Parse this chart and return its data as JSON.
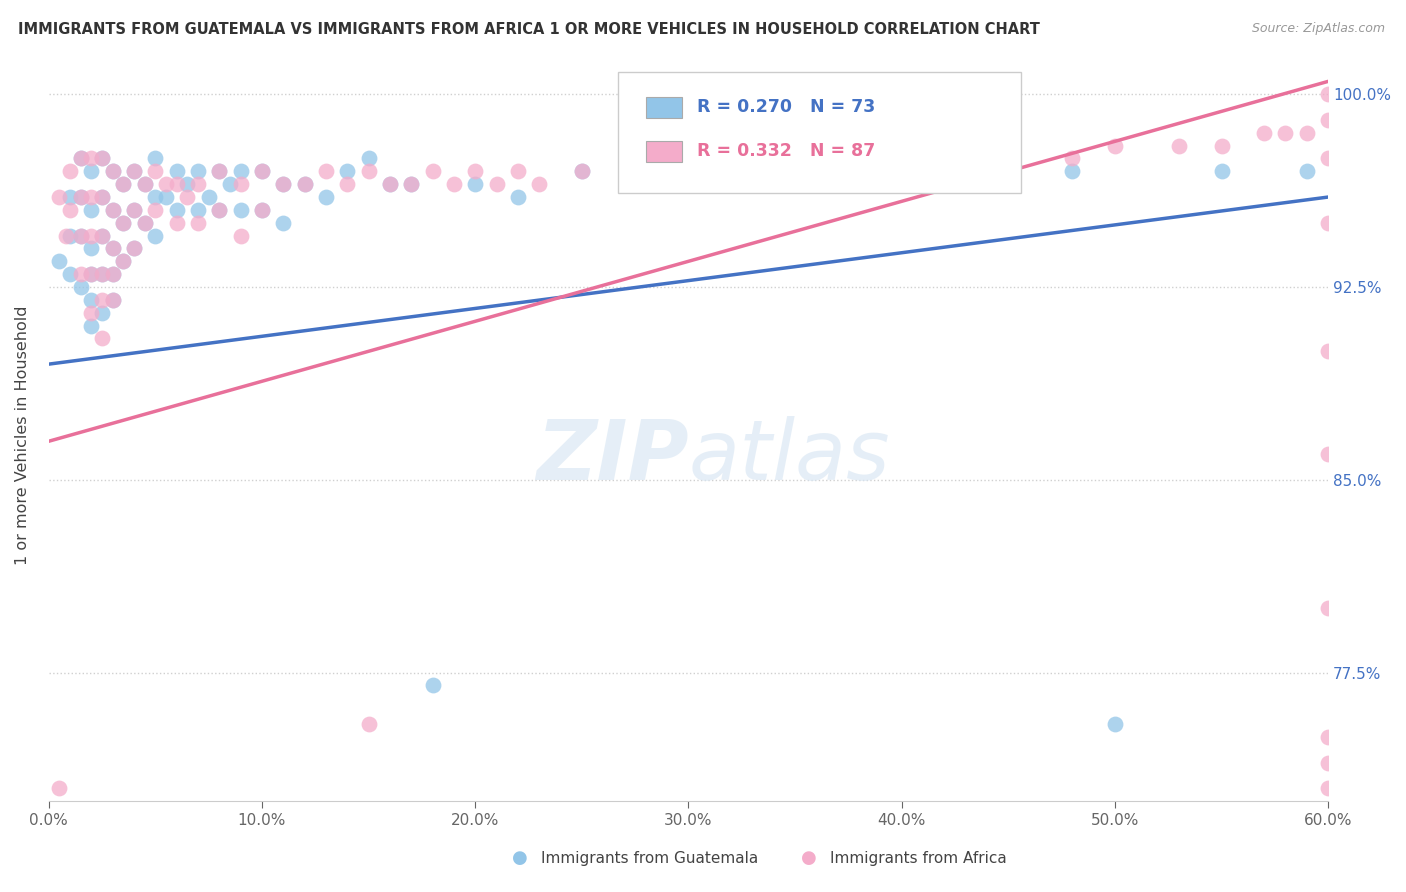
{
  "title": "IMMIGRANTS FROM GUATEMALA VS IMMIGRANTS FROM AFRICA 1 OR MORE VEHICLES IN HOUSEHOLD CORRELATION CHART",
  "source": "Source: ZipAtlas.com",
  "ylabel": "1 or more Vehicles in Household",
  "xlim": [
    0.0,
    0.6
  ],
  "ylim": [
    0.725,
    1.01
  ],
  "xtick_labels": [
    "0.0%",
    "10.0%",
    "20.0%",
    "30.0%",
    "40.0%",
    "50.0%",
    "60.0%"
  ],
  "xtick_vals": [
    0.0,
    0.1,
    0.2,
    0.3,
    0.4,
    0.5,
    0.6
  ],
  "ytick_labels": [
    "77.5%",
    "85.0%",
    "92.5%",
    "100.0%"
  ],
  "ytick_vals": [
    0.775,
    0.85,
    0.925,
    1.0
  ],
  "legend_r_blue": "R = 0.270",
  "legend_n_blue": "N = 73",
  "legend_r_pink": "R = 0.332",
  "legend_n_pink": "N = 87",
  "blue_color": "#92C5E8",
  "pink_color": "#F4ACCA",
  "blue_line_color": "#4472C4",
  "pink_line_color": "#E8709A",
  "blue_trend_x0": 0.0,
  "blue_trend_y0": 0.895,
  "blue_trend_x1": 0.6,
  "blue_trend_y1": 0.96,
  "pink_trend_x0": 0.0,
  "pink_trend_y0": 0.865,
  "pink_trend_x1": 0.6,
  "pink_trend_y1": 1.005,
  "blue_scatter_x": [
    0.005,
    0.01,
    0.01,
    0.01,
    0.015,
    0.015,
    0.015,
    0.015,
    0.02,
    0.02,
    0.02,
    0.02,
    0.02,
    0.02,
    0.025,
    0.025,
    0.025,
    0.025,
    0.025,
    0.03,
    0.03,
    0.03,
    0.03,
    0.03,
    0.035,
    0.035,
    0.035,
    0.04,
    0.04,
    0.04,
    0.045,
    0.045,
    0.05,
    0.05,
    0.05,
    0.055,
    0.06,
    0.06,
    0.065,
    0.07,
    0.07,
    0.075,
    0.08,
    0.08,
    0.085,
    0.09,
    0.09,
    0.1,
    0.1,
    0.11,
    0.11,
    0.12,
    0.13,
    0.14,
    0.15,
    0.16,
    0.17,
    0.18,
    0.2,
    0.22,
    0.25,
    0.28,
    0.3,
    0.32,
    0.35,
    0.38,
    0.4,
    0.43,
    0.45,
    0.48,
    0.5,
    0.55,
    0.59
  ],
  "blue_scatter_y": [
    0.935,
    0.96,
    0.945,
    0.93,
    0.975,
    0.96,
    0.945,
    0.925,
    0.97,
    0.955,
    0.94,
    0.93,
    0.92,
    0.91,
    0.975,
    0.96,
    0.945,
    0.93,
    0.915,
    0.97,
    0.955,
    0.94,
    0.93,
    0.92,
    0.965,
    0.95,
    0.935,
    0.97,
    0.955,
    0.94,
    0.965,
    0.95,
    0.975,
    0.96,
    0.945,
    0.96,
    0.97,
    0.955,
    0.965,
    0.97,
    0.955,
    0.96,
    0.97,
    0.955,
    0.965,
    0.97,
    0.955,
    0.97,
    0.955,
    0.965,
    0.95,
    0.965,
    0.96,
    0.97,
    0.975,
    0.965,
    0.965,
    0.77,
    0.965,
    0.96,
    0.97,
    0.965,
    0.97,
    0.965,
    0.97,
    0.97,
    0.97,
    0.97,
    0.965,
    0.97,
    0.755,
    0.97,
    0.97
  ],
  "pink_scatter_x": [
    0.005,
    0.005,
    0.008,
    0.01,
    0.01,
    0.015,
    0.015,
    0.015,
    0.015,
    0.02,
    0.02,
    0.02,
    0.02,
    0.02,
    0.025,
    0.025,
    0.025,
    0.025,
    0.025,
    0.025,
    0.03,
    0.03,
    0.03,
    0.03,
    0.03,
    0.035,
    0.035,
    0.035,
    0.04,
    0.04,
    0.04,
    0.045,
    0.045,
    0.05,
    0.05,
    0.055,
    0.06,
    0.06,
    0.065,
    0.07,
    0.07,
    0.08,
    0.08,
    0.09,
    0.09,
    0.1,
    0.1,
    0.11,
    0.12,
    0.13,
    0.14,
    0.15,
    0.15,
    0.16,
    0.17,
    0.18,
    0.19,
    0.2,
    0.21,
    0.22,
    0.23,
    0.25,
    0.28,
    0.3,
    0.33,
    0.35,
    0.38,
    0.4,
    0.43,
    0.45,
    0.48,
    0.5,
    0.53,
    0.55,
    0.57,
    0.58,
    0.59,
    0.6,
    0.6,
    0.6,
    0.6,
    0.6,
    0.6,
    0.6,
    0.6,
    0.6,
    0.6
  ],
  "pink_scatter_y": [
    0.73,
    0.96,
    0.945,
    0.97,
    0.955,
    0.975,
    0.96,
    0.945,
    0.93,
    0.975,
    0.96,
    0.945,
    0.93,
    0.915,
    0.975,
    0.96,
    0.945,
    0.93,
    0.92,
    0.905,
    0.97,
    0.955,
    0.94,
    0.93,
    0.92,
    0.965,
    0.95,
    0.935,
    0.97,
    0.955,
    0.94,
    0.965,
    0.95,
    0.97,
    0.955,
    0.965,
    0.965,
    0.95,
    0.96,
    0.965,
    0.95,
    0.97,
    0.955,
    0.965,
    0.945,
    0.97,
    0.955,
    0.965,
    0.965,
    0.97,
    0.965,
    0.97,
    0.755,
    0.965,
    0.965,
    0.97,
    0.965,
    0.97,
    0.965,
    0.97,
    0.965,
    0.97,
    0.97,
    0.97,
    0.97,
    0.97,
    0.975,
    0.975,
    0.975,
    0.975,
    0.975,
    0.98,
    0.98,
    0.98,
    0.985,
    0.985,
    0.985,
    0.73,
    0.74,
    0.75,
    0.8,
    0.86,
    0.9,
    0.95,
    0.975,
    0.99,
    1.0
  ]
}
